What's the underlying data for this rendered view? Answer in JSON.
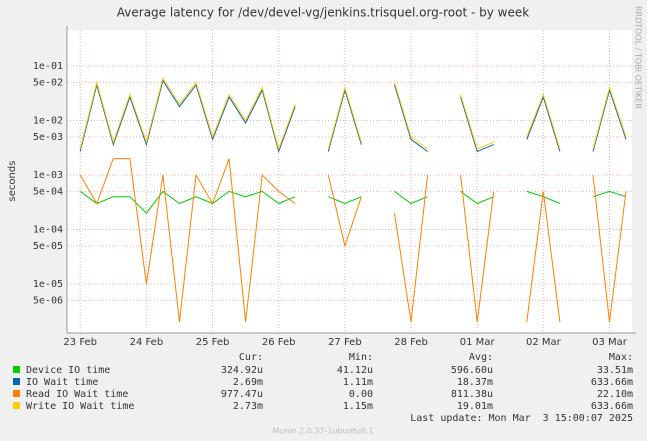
{
  "chart_data": {
    "type": "line",
    "title": "Average latency for /dev/devel-vg/jenkins.trisquel.org-root - by week",
    "y_label": "seconds",
    "side_text": "RRDTOOL / TOBI OETIKER",
    "log_scale": true,
    "grid": true,
    "ylim": [
      1.26e-06,
      0.457
    ],
    "yticks": [
      {
        "value": 0.1,
        "label": "1e-01"
      },
      {
        "value": 0.05,
        "label": "5e-02"
      },
      {
        "value": 0.01,
        "label": "1e-02"
      },
      {
        "value": 0.005,
        "label": "5e-03"
      },
      {
        "value": 0.001,
        "label": "1e-03"
      },
      {
        "value": 0.0005,
        "label": "5e-04"
      },
      {
        "value": 0.0001,
        "label": "1e-04"
      },
      {
        "value": 5e-05,
        "label": "5e-05"
      },
      {
        "value": 1e-05,
        "label": "1e-05"
      },
      {
        "value": 5e-06,
        "label": "5e-06"
      }
    ],
    "xlim": [
      -0.2,
      8.34
    ],
    "xticks": [
      {
        "value": 0,
        "label": "23 Feb"
      },
      {
        "value": 1,
        "label": "24 Feb"
      },
      {
        "value": 2,
        "label": "25 Feb"
      },
      {
        "value": 3,
        "label": "26 Feb"
      },
      {
        "value": 4,
        "label": "27 Feb"
      },
      {
        "value": 5,
        "label": "28 Feb"
      },
      {
        "value": 6,
        "label": "01 Mar"
      },
      {
        "value": 7,
        "label": "02 Mar"
      },
      {
        "value": 8,
        "label": "03 Mar"
      }
    ],
    "x": [
      0,
      0.25,
      0.5,
      0.75,
      1,
      1.25,
      1.5,
      1.75,
      2,
      2.25,
      2.5,
      2.75,
      3,
      3.25,
      3.5,
      3.75,
      4,
      4.25,
      4.5,
      4.75,
      5,
      5.25,
      5.5,
      5.75,
      6,
      6.25,
      6.5,
      6.75,
      7,
      7.25,
      7.5,
      7.75,
      8,
      8.25
    ],
    "series": [
      {
        "name": "Device IO time",
        "color": "#00cc00",
        "values": [
          0.0005,
          0.0003,
          0.0004,
          0.0004,
          0.0002,
          0.0005,
          0.0003,
          0.0004,
          0.0003,
          0.0005,
          0.0004,
          0.0005,
          0.0003,
          0.0004,
          null,
          0.0004,
          0.0003,
          0.0004,
          null,
          0.0005,
          0.0003,
          0.0004,
          null,
          0.0005,
          0.0003,
          0.0004,
          null,
          0.0005,
          0.0004,
          0.0003,
          null,
          0.0004,
          0.0005,
          0.0004
        ]
      },
      {
        "name": "IO Wait time",
        "color": "#0066b3",
        "values": [
          0.0027,
          0.045,
          0.0036,
          0.027,
          0.0036,
          0.054,
          0.018,
          0.045,
          0.0045,
          0.027,
          0.009,
          0.036,
          0.0027,
          0.018,
          null,
          0.0027,
          0.036,
          0.0036,
          null,
          0.045,
          0.0045,
          0.0027,
          null,
          0.027,
          0.0027,
          0.0036,
          null,
          0.0045,
          0.027,
          0.0027,
          null,
          0.0027,
          0.036,
          0.0045
        ]
      },
      {
        "name": "Read IO Wait time",
        "color": "#ff8000",
        "values": [
          0.001,
          0.0003,
          0.002,
          0.002,
          1e-05,
          0.001,
          2e-06,
          0.001,
          0.0003,
          0.002,
          2e-06,
          0.001,
          0.0005,
          0.0003,
          null,
          0.001,
          5e-05,
          0.0004,
          null,
          0.0002,
          2e-06,
          0.001,
          null,
          0.001,
          2e-06,
          0.0005,
          null,
          2e-06,
          0.0005,
          2e-06,
          null,
          0.001,
          2e-06,
          0.0005
        ]
      },
      {
        "name": "Write IO Wait time",
        "color": "#ffcc00",
        "values": [
          0.003,
          0.05,
          0.004,
          0.03,
          0.004,
          0.06,
          0.02,
          0.05,
          0.005,
          0.03,
          0.01,
          0.04,
          0.003,
          0.02,
          null,
          0.003,
          0.04,
          0.004,
          null,
          0.05,
          0.005,
          0.003,
          null,
          0.03,
          0.003,
          0.004,
          null,
          0.005,
          0.03,
          0.003,
          null,
          0.003,
          0.04,
          0.005
        ]
      }
    ],
    "legend_headers": [
      "Cur:",
      "Min:",
      "Avg:",
      "Max:"
    ],
    "legend_rows": [
      [
        "324.92u",
        "41.12u",
        "596.60u",
        "33.51m"
      ],
      [
        "2.69m",
        "1.11m",
        "18.37m",
        "633.66m"
      ],
      [
        "977.47u",
        "0.00",
        "811.38u",
        "22.10m"
      ],
      [
        "2.73m",
        "1.15m",
        "19.01m",
        "633.66m"
      ]
    ],
    "last_update": "Last update: Mon Mar  3 15:00:07 2025",
    "footer": "Munin 2.0.37-1ubuntu0.1"
  }
}
